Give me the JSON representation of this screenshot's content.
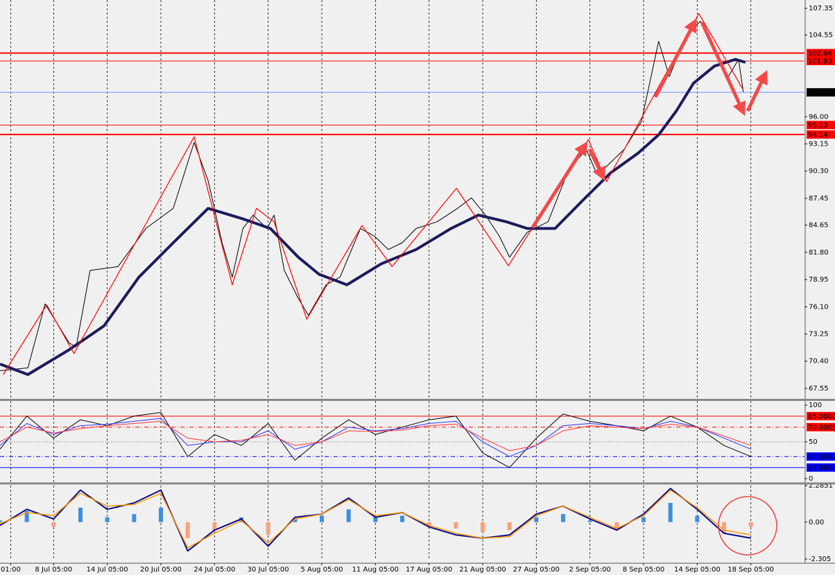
{
  "chart_data": [
    {
      "type": "line",
      "xlim": [
        0,
        150
      ],
      "ylim": [
        66.46,
        108.22
      ],
      "grid": "x",
      "xticks": [
        {
          "value": 2,
          "label": "01:00"
        },
        {
          "value": 10,
          "label": "8 Jul 05:00"
        },
        {
          "value": 20,
          "label": "14 Jul 05:00"
        },
        {
          "value": 30,
          "label": "20 Jul 05:00"
        },
        {
          "value": 40,
          "label": "24 Jul 05:00"
        },
        {
          "value": 50,
          "label": "30 Jul 05:00"
        },
        {
          "value": 60,
          "label": "5 Aug 05:00"
        },
        {
          "value": 70,
          "label": "11 Aug 05:00"
        },
        {
          "value": 80,
          "label": "17 Aug 05:00"
        },
        {
          "value": 90,
          "label": "21 Aug 05:00"
        },
        {
          "value": 100,
          "label": "27 Aug 05:00"
        },
        {
          "value": 110,
          "label": "2 Sep 05:00"
        },
        {
          "value": 120,
          "label": "8 Sep 05:00"
        },
        {
          "value": 130,
          "label": "14 Sep 05:00"
        },
        {
          "value": 140,
          "label": "18 Sep 05:00"
        }
      ],
      "yticks": [
        107.35,
        104.55,
        {
          "value": 96,
          "label": "96.00"
        },
        93.15,
        {
          "value": 90.3,
          "label": "90.30"
        },
        87.45,
        84.65,
        {
          "value": 81.8,
          "label": "81.80"
        },
        78.95,
        {
          "value": 76.1,
          "label": "76.10"
        },
        73.25,
        {
          "value": 70.4,
          "label": "70.40"
        },
        67.55
      ],
      "levels": [
        {
          "value": 102.66,
          "color": "#ff0000",
          "width": 2,
          "style": "solid",
          "box": "#ff0000"
        },
        {
          "value": 101.83,
          "color": "#ff0000",
          "width": 1,
          "style": "solid",
          "box": "#ff0000"
        },
        {
          "value": 98.55,
          "color": "#6f8dff",
          "width": 1,
          "style": "solid",
          "box": "#000000"
        },
        {
          "value": 95.13,
          "color": "#ff0000",
          "width": 1,
          "style": "solid",
          "box": "#ff0000"
        },
        {
          "value": 94.14,
          "color": "#ff0000",
          "width": 2,
          "style": "solid",
          "box": "#ff0000"
        }
      ],
      "series": [
        {
          "color": "#000000",
          "width": 1,
          "x": [
            0,
            5.2,
            8.4,
            12.9,
            14.2,
            16.8,
            22,
            27.2,
            32.3,
            36.2,
            38.8,
            41.4,
            43.3,
            45.3,
            47.2,
            49.8,
            51.1,
            53,
            55.6,
            57.5,
            60.8,
            63.4,
            67.2,
            69.8,
            72.4,
            75,
            77.6,
            81.5,
            85.3,
            87.9,
            90.5,
            93.1,
            95,
            98.3,
            102.2,
            106,
            109.3,
            111.2,
            113.1,
            116.4,
            119.6,
            122.8,
            124.8,
            128,
            130.6,
            133.2,
            135.8,
            137.7,
            138.6
          ],
          "values": [
            69.4,
            69.7,
            76.4,
            72.3,
            71.9,
            79.9,
            80.3,
            84.3,
            86.4,
            93.3,
            89.3,
            82.8,
            79.2,
            84.3,
            85.7,
            84.3,
            85.7,
            79.9,
            77.0,
            75.2,
            78.4,
            79.2,
            84.3,
            83.5,
            82.1,
            82.8,
            84.3,
            85.0,
            86.4,
            87.5,
            85.7,
            83.5,
            81.3,
            83.9,
            85.0,
            90.4,
            92.6,
            90.1,
            90.8,
            92.6,
            95.5,
            103.9,
            100.2,
            104.6,
            106.0,
            103.1,
            100.2,
            102.0,
            98.6
          ]
        },
        {
          "color": "#1b1b5c",
          "width": 4,
          "x": [
            0,
            5.2,
            12.9,
            19.4,
            25.9,
            32.3,
            38.8,
            45.3,
            50.4,
            55.6,
            59.5,
            64.7,
            71.1,
            77.6,
            84.1,
            89.2,
            94.4,
            98.3,
            103.5,
            108.6,
            113.8,
            119,
            122.8,
            126.1,
            129.3,
            133.2,
            137.1,
            139
          ],
          "values": [
            70.1,
            69.0,
            71.6,
            74.1,
            79.2,
            82.8,
            86.4,
            85.3,
            84.3,
            81.3,
            79.5,
            78.4,
            80.6,
            82.1,
            84.3,
            85.7,
            85.0,
            84.3,
            84.3,
            87.2,
            90.1,
            92.2,
            94.1,
            96.6,
            99.5,
            101.3,
            102.0,
            101.7
          ]
        },
        {
          "color": "#ff0000",
          "width": 1.2,
          "x": [
            0.6,
            8.7,
            13.8,
            36.2,
            43.3,
            47.8,
            51.1,
            57.2,
            67.5,
            73.1,
            85.1,
            94.8,
            109.7,
            113.1,
            130.3,
            138.6
          ],
          "values": [
            69.0,
            76.3,
            71.2,
            93.9,
            78.4,
            86.4,
            85.0,
            74.8,
            84.6,
            80.3,
            88.5,
            80.4,
            93.6,
            89.2,
            106.8,
            98.8
          ]
        }
      ]
    },
    {
      "type": "line",
      "xlim": [
        0,
        150
      ],
      "ylim": [
        -4.7,
        105.7
      ],
      "yticks": [
        0,
        50,
        100
      ],
      "x": [
        0,
        5,
        10,
        15,
        20,
        25,
        30,
        35,
        40,
        45,
        50,
        55,
        60,
        65,
        70,
        75,
        80,
        85,
        90,
        95,
        100,
        105,
        110,
        115,
        120,
        125,
        130,
        135,
        140
      ],
      "levels": [
        {
          "value": 85,
          "label": "85.0000",
          "color": "#ff0000",
          "width": 1,
          "style": "solid",
          "box": "#ff0000"
        },
        {
          "value": 70,
          "label": "70.0000",
          "color": "#ff0000",
          "width": 1,
          "style": "dashdot",
          "box": "#ff0000"
        },
        {
          "value": 50,
          "color": "#999999",
          "width": 1,
          "style": "dotted"
        },
        {
          "value": 30,
          "label": "30.0000",
          "color": "#0000ff",
          "width": 1,
          "style": "dashdot",
          "box": "#0000ff"
        },
        {
          "value": 15,
          "label": "15.0000",
          "color": "#0000ff",
          "width": 1,
          "style": "solid",
          "box": "#0000ff"
        }
      ],
      "series": [
        {
          "color": "#000000",
          "width": 1,
          "values": [
            40,
            85,
            55,
            80,
            72,
            85,
            90,
            30,
            60,
            45,
            75,
            25,
            55,
            80,
            60,
            70,
            80,
            85,
            35,
            15,
            55,
            88,
            78,
            72,
            65,
            85,
            70,
            45,
            30
          ]
        },
        {
          "color": "#3333ff",
          "width": 1,
          "values": [
            45,
            75,
            60,
            72,
            74,
            78,
            82,
            45,
            50,
            50,
            65,
            40,
            50,
            70,
            65,
            68,
            75,
            78,
            50,
            30,
            45,
            72,
            75,
            72,
            68,
            78,
            70,
            55,
            40
          ]
        },
        {
          "color": "#ff3333",
          "width": 1,
          "values": [
            50,
            70,
            62,
            68,
            72,
            75,
            78,
            55,
            50,
            52,
            60,
            45,
            50,
            65,
            64,
            66,
            72,
            74,
            55,
            38,
            45,
            65,
            72,
            70,
            68,
            74,
            70,
            58,
            45
          ]
        }
      ]
    },
    {
      "type": "combo",
      "xlim": [
        0,
        150
      ],
      "ylim": [
        -2.305,
        2.2851
      ],
      "yticks": [
        2.2851,
        {
          "value": 0,
          "label": "0.00"
        },
        -2.305
      ],
      "x": [
        0,
        5,
        10,
        15,
        20,
        25,
        30,
        35,
        40,
        45,
        50,
        55,
        60,
        65,
        70,
        75,
        80,
        85,
        90,
        95,
        100,
        105,
        110,
        115,
        120,
        125,
        130,
        135,
        140
      ],
      "series": [
        {
          "kind": "bar",
          "colors": [
            "#3d8fe0",
            "#f6a37e"
          ],
          "values": [
            0.1,
            0.7,
            -0.3,
            0.9,
            0.3,
            0.5,
            0.9,
            -1.0,
            -0.5,
            0.3,
            -0.8,
            0.2,
            0.4,
            0.8,
            0.3,
            0.4,
            -0.3,
            -0.4,
            -0.6,
            -0.5,
            0.3,
            0.5,
            0.1,
            -0.5,
            0.3,
            1.2,
            0.4,
            -0.7,
            -0.3
          ]
        },
        {
          "kind": "line",
          "color": "#0a0a8a",
          "width": 2,
          "values": [
            -0.2,
            0.8,
            0.2,
            2.0,
            0.8,
            1.2,
            2.0,
            -1.8,
            -0.5,
            0.2,
            -1.5,
            0.3,
            0.5,
            1.5,
            0.3,
            0.6,
            -0.3,
            -0.8,
            -1.0,
            -0.8,
            0.5,
            1.0,
            0.2,
            -0.5,
            0.5,
            2.1,
            0.8,
            -0.7,
            -1.0
          ]
        },
        {
          "kind": "line",
          "color": "#ff9900",
          "width": 1.5,
          "values": [
            -0.1,
            0.6,
            0.4,
            1.8,
            1.0,
            1.1,
            1.8,
            -1.6,
            -0.7,
            0.1,
            -1.3,
            0.2,
            0.5,
            1.4,
            0.4,
            0.6,
            -0.2,
            -0.7,
            -1.0,
            -0.9,
            0.4,
            1.0,
            0.3,
            -0.4,
            0.4,
            2.0,
            0.9,
            -0.5,
            -0.8
          ]
        }
      ]
    }
  ]
}
